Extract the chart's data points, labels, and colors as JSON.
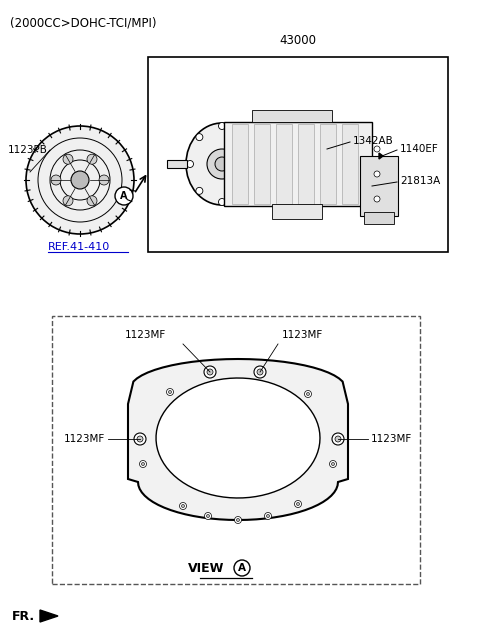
{
  "title_text": "(2000CC>DOHC-TCI/MPI)",
  "bg_color": "#ffffff",
  "part_numbers": {
    "main_box_label": "43000",
    "part_21813A": "21813A",
    "part_1342AB": "1342AB",
    "part_1140EF": "1140EF",
    "part_1123PB": "1123PB",
    "ref_label": "REF.41-410",
    "part_1123MF_top_left": "1123MF",
    "part_1123MF_top_right": "1123MF",
    "part_1123MF_left": "1123MF",
    "part_1123MF_right": "1123MF",
    "view_label": "VIEW",
    "circle_A": "A",
    "fr_label": "FR."
  },
  "colors": {
    "black": "#000000",
    "link_blue": "#0000cc",
    "dashed_border": "#555555"
  }
}
